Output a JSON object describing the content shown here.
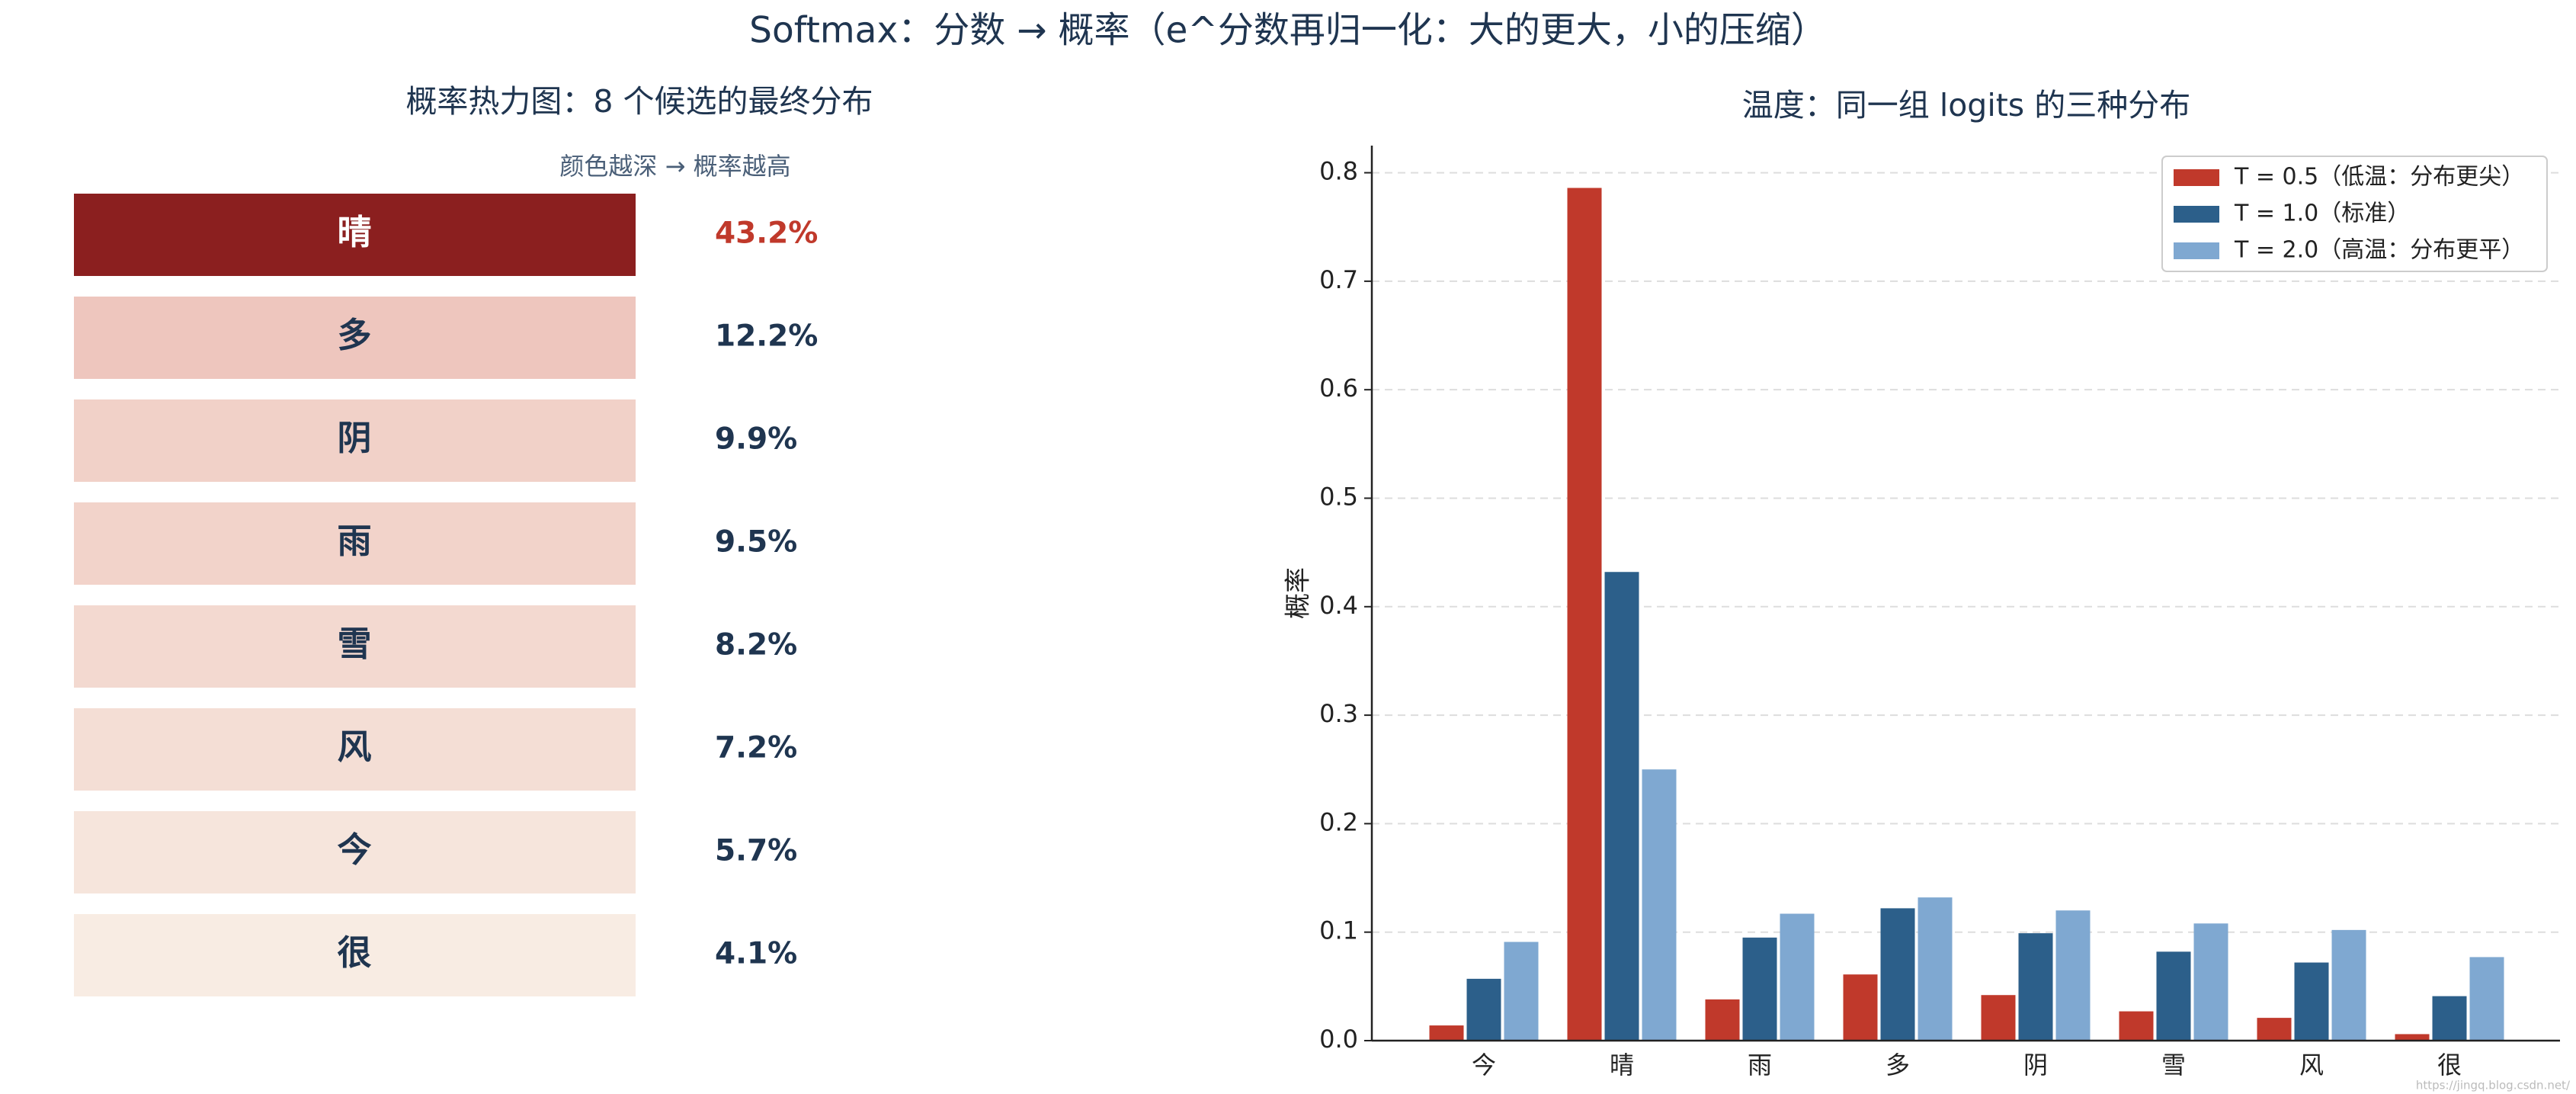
{
  "title": "Softmax：分数 → 概率（e^分数再归一化：大的更大，小的压缩）",
  "watermark": "https://jingq.blog.csdn.net/",
  "chart_data": [
    {
      "type": "heatmap",
      "title": "概率热力图：8 个候选的最终分布",
      "subtitle": "颜色越深 → 概率越高",
      "categories": [
        "晴",
        "多",
        "阴",
        "雨",
        "雪",
        "风",
        "今",
        "很"
      ],
      "values": [
        43.2,
        12.2,
        9.9,
        9.5,
        8.2,
        7.2,
        5.7,
        4.1
      ],
      "value_labels": [
        "43.2%",
        "12.2%",
        "9.9%",
        "9.5%",
        "8.2%",
        "7.2%",
        "5.7%",
        "4.1%"
      ]
    },
    {
      "type": "bar",
      "title": "温度：同一组 logits 的三种分布",
      "ylabel": "概率",
      "categories": [
        "今",
        "晴",
        "雨",
        "多",
        "阴",
        "雪",
        "风",
        "很"
      ],
      "series": [
        {
          "name": "T = 0.5（低温：分布更尖）",
          "color": "#c0392b",
          "values": [
            0.014,
            0.786,
            0.038,
            0.061,
            0.042,
            0.027,
            0.021,
            0.006
          ]
        },
        {
          "name": "T = 1.0（标准）",
          "color": "#2c5f8a",
          "values": [
            0.057,
            0.432,
            0.095,
            0.122,
            0.099,
            0.082,
            0.072,
            0.041
          ]
        },
        {
          "name": "T = 2.0（高温：分布更平）",
          "color": "#7fa8d1",
          "values": [
            0.091,
            0.25,
            0.117,
            0.132,
            0.12,
            0.108,
            0.102,
            0.077
          ]
        }
      ],
      "ylim": [
        0,
        0.825
      ],
      "yticks": [
        {
          "value": 0,
          "label": "0.0"
        },
        0.1,
        0.2,
        0.3,
        0.4,
        0.5,
        0.6,
        0.7,
        0.8
      ],
      "grid": true,
      "legend": "upper right"
    }
  ]
}
